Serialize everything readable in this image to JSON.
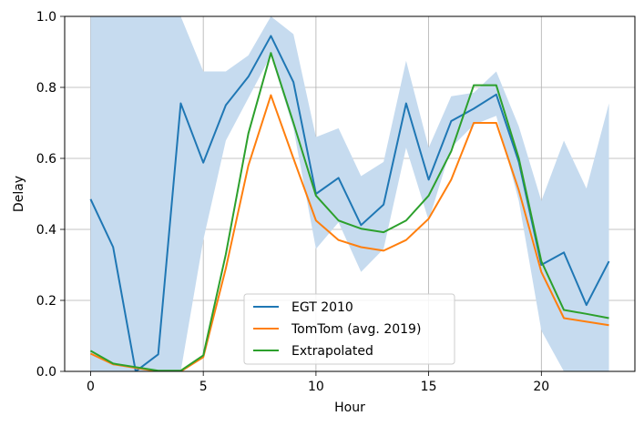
{
  "chart_data": {
    "type": "line",
    "xlabel": "Hour",
    "ylabel": "Delay",
    "xlim": [
      -1.15,
      24.15
    ],
    "ylim": [
      0,
      1
    ],
    "x_ticks": [
      0,
      5,
      10,
      15,
      20
    ],
    "y_ticks": [
      0.0,
      0.2,
      0.4,
      0.6,
      0.8,
      1.0
    ],
    "y_tick_labels": [
      "0.0",
      "0.2",
      "0.4",
      "0.6",
      "0.8",
      "1.0"
    ],
    "grid": true,
    "legend_position": "lower-center",
    "x": [
      0,
      1,
      2,
      3,
      4,
      5,
      6,
      7,
      8,
      9,
      10,
      11,
      12,
      13,
      14,
      15,
      16,
      17,
      18,
      19,
      20,
      21,
      22,
      23
    ],
    "band": {
      "color": "#c6dbef",
      "upper": [
        1.0,
        1.0,
        1.0,
        1.0,
        1.0,
        0.845,
        0.845,
        0.89,
        1.0,
        0.95,
        0.66,
        0.685,
        0.55,
        0.59,
        0.875,
        0.63,
        0.775,
        0.785,
        0.845,
        0.69,
        0.48,
        0.65,
        0.515,
        0.755
      ],
      "lower": [
        0.0,
        0.0,
        0.0,
        0.0,
        0.0,
        0.37,
        0.65,
        0.77,
        0.89,
        0.685,
        0.345,
        0.42,
        0.28,
        0.345,
        0.63,
        0.425,
        0.63,
        0.695,
        0.72,
        0.48,
        0.115,
        0.0,
        0.0,
        0.0
      ]
    },
    "series": [
      {
        "name": "EGT 2010",
        "color": "#1f77b4",
        "values": [
          0.485,
          0.35,
          0.0,
          0.048,
          0.755,
          0.588,
          0.75,
          0.83,
          0.945,
          0.815,
          0.5,
          0.545,
          0.412,
          0.47,
          0.755,
          0.54,
          0.705,
          0.74,
          0.78,
          0.59,
          0.3,
          0.335,
          0.187,
          0.31
        ]
      },
      {
        "name": "TomTom (avg. 2019)",
        "color": "#ff7f0e",
        "values": [
          0.05,
          0.02,
          0.01,
          0.0,
          0.0,
          0.04,
          0.29,
          0.58,
          0.778,
          0.6,
          0.425,
          0.37,
          0.35,
          0.34,
          0.37,
          0.43,
          0.54,
          0.7,
          0.7,
          0.51,
          0.28,
          0.15,
          0.14,
          0.13
        ]
      },
      {
        "name": "Extrapolated",
        "color": "#2ca02c",
        "values": [
          0.058,
          0.022,
          0.012,
          0.002,
          0.002,
          0.045,
          0.33,
          0.67,
          0.897,
          0.7,
          0.495,
          0.425,
          0.402,
          0.392,
          0.425,
          0.495,
          0.62,
          0.806,
          0.806,
          0.6,
          0.31,
          0.173,
          0.162,
          0.15
        ]
      }
    ]
  }
}
